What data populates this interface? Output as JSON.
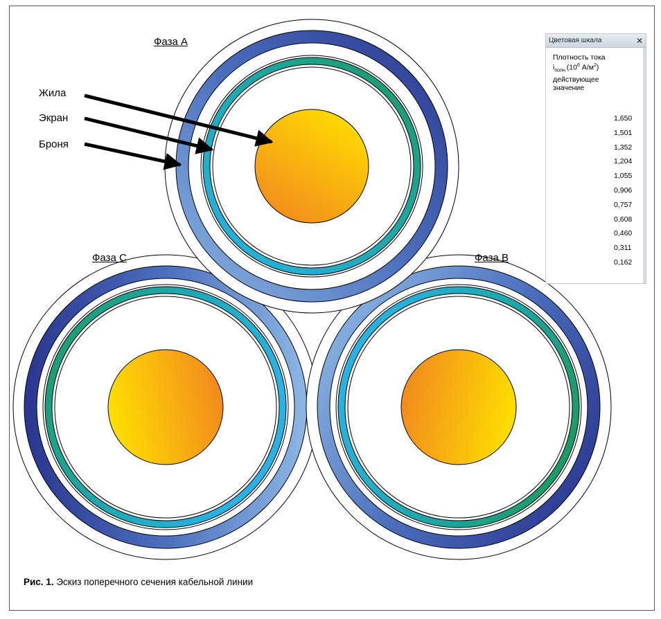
{
  "phases": {
    "a": "Фаза А",
    "b": "Фаза В",
    "c": "Фаза С"
  },
  "callouts": {
    "core": "Жила",
    "screen": "Экран",
    "armor": "Броня"
  },
  "scale_panel": {
    "title": "Цветовая шкала",
    "caption_line1": "Плотность тока",
    "caption_i": "i",
    "caption_sub": "полн.",
    "caption_rest1": "(10",
    "caption_sup1": "6",
    "caption_rest2": " A/м",
    "caption_sup2": "2",
    "caption_rest3": ")",
    "caption_line3": "действующее",
    "caption_line4": "значение",
    "values": [
      "1,650",
      "1,501",
      "1,352",
      "1,204",
      "1,055",
      "0,906",
      "0,757",
      "0,608",
      "0,460",
      "0,311",
      "0,162"
    ],
    "colors": [
      "#e8262a",
      "#f4874b",
      "#f9a24f",
      "#fdd116",
      "#fff27a",
      "#fffbe0",
      "#c4dc8c",
      "#1a9b55",
      "#9bd4b4",
      "#a8daf2",
      "#2fa7df",
      "#0d84c8",
      "#4d6fb8",
      "#26358f",
      "#8d7fc0"
    ]
  },
  "caption": {
    "bold": "Рис. 1.",
    "text": " Эскиз поперечного сечения кабельной линии"
  },
  "colors": {
    "armor_dark": "#2f3e95",
    "armor_light": "#7fa9da",
    "screen_green": "#21a47a",
    "screen_blue": "#29a6d6",
    "core_yellow": "#ffd400",
    "core_orange": "#f59a1e"
  }
}
